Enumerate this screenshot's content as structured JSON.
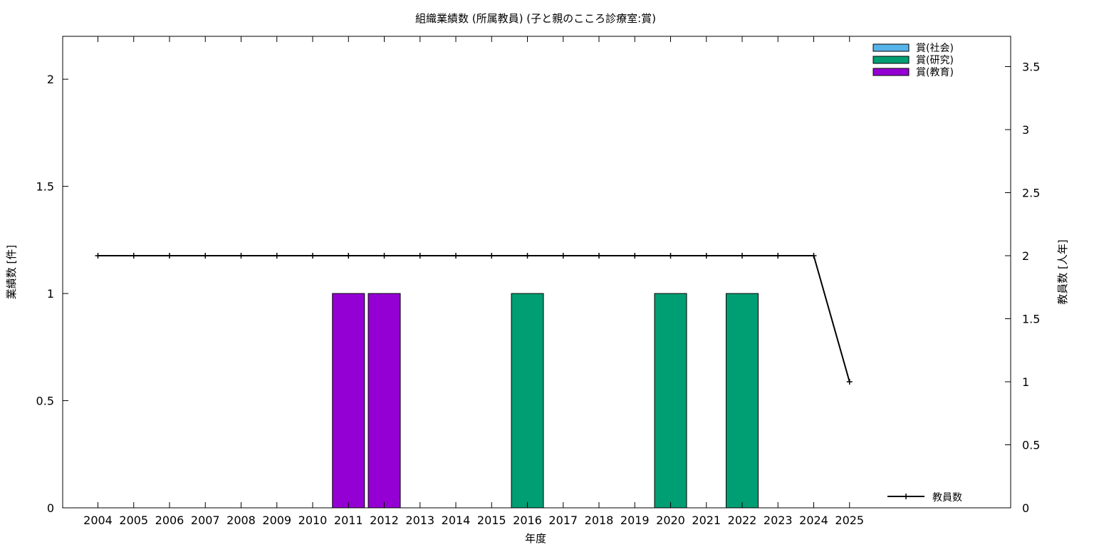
{
  "chart_data": {
    "type": "bar",
    "title": "組織業績数 (所属教員) (子と親のこころ診療室:賞)",
    "xlabel": "年度",
    "ylabel": "業績数 [件]",
    "y2label": "教員数 [人年]",
    "categories": [
      "2004",
      "2005",
      "2006",
      "2007",
      "2008",
      "2009",
      "2010",
      "2011",
      "2012",
      "2013",
      "2014",
      "2015",
      "2016",
      "2017",
      "2018",
      "2019",
      "2020",
      "2021",
      "2022",
      "2023",
      "2024",
      "2025"
    ],
    "ylim": [
      0,
      2.2
    ],
    "y2lim": [
      0,
      3.74
    ],
    "yticks": [
      0,
      0.5,
      1,
      1.5,
      2
    ],
    "y2ticks": [
      0,
      0.5,
      1,
      1.5,
      2,
      2.5,
      3,
      3.5
    ],
    "series": [
      {
        "name": "賞(社会)",
        "color": "#56b4e9",
        "values": [
          0,
          0,
          0,
          0,
          0,
          0,
          0,
          0,
          0,
          0,
          0,
          0,
          0,
          0,
          0,
          0,
          0,
          0,
          0,
          0,
          0,
          0
        ]
      },
      {
        "name": "賞(研究)",
        "color": "#009e73",
        "values": [
          0,
          0,
          0,
          0,
          0,
          0,
          0,
          0,
          0,
          0,
          0,
          0,
          1,
          0,
          0,
          0,
          1,
          0,
          1,
          0,
          0,
          0
        ]
      },
      {
        "name": "賞(教育)",
        "color": "#9400d3",
        "values": [
          0,
          0,
          0,
          0,
          0,
          0,
          0,
          1,
          1,
          0,
          0,
          0,
          0,
          0,
          0,
          0,
          0,
          0,
          0,
          0,
          0,
          0
        ]
      }
    ],
    "line_series": {
      "name": "教員数",
      "axis": "y2",
      "color": "#000000",
      "values": [
        2,
        2,
        2,
        2,
        2,
        2,
        2,
        2,
        2,
        2,
        2,
        2,
        2,
        2,
        2,
        2,
        2,
        2,
        2,
        2,
        2,
        1
      ]
    },
    "legend_position": "top-right",
    "grid": false
  }
}
